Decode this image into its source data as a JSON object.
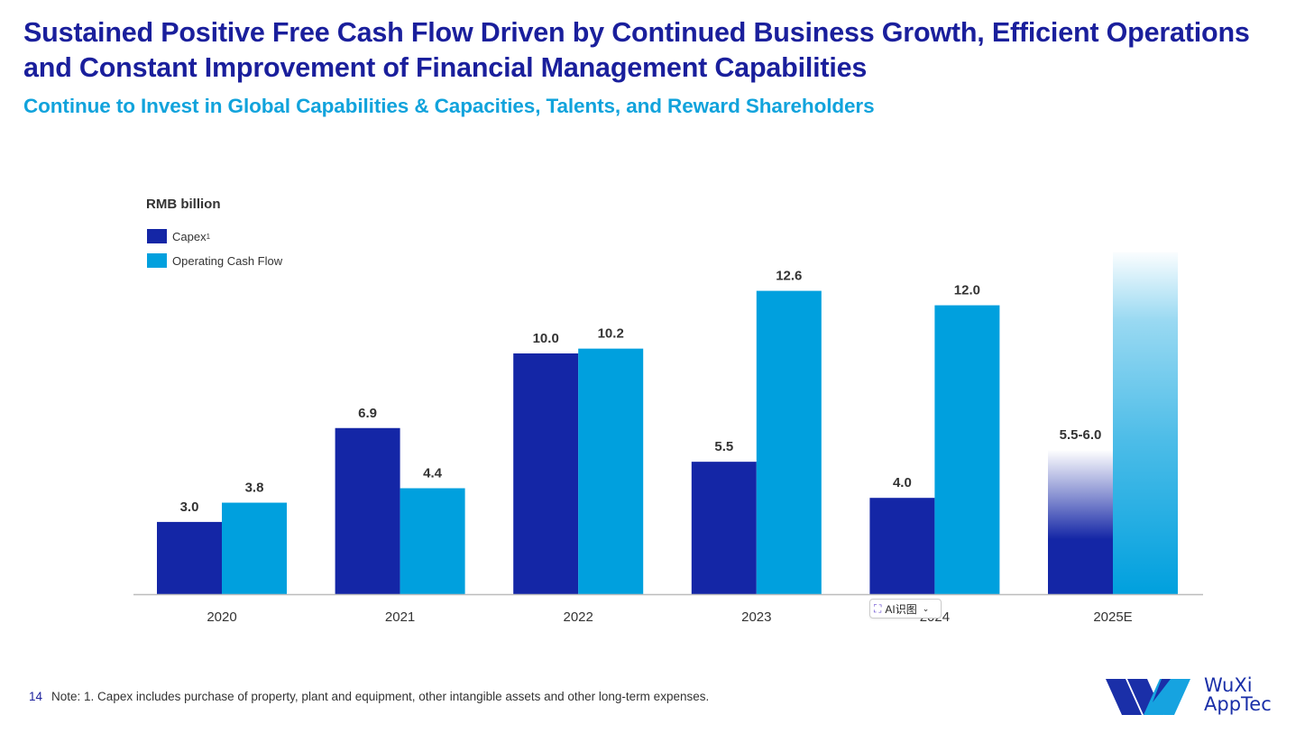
{
  "header": {
    "title": "Sustained Positive Free Cash Flow Driven by Continued Business Growth, Efficient Operations and Constant Improvement of Financial Management Capabilities",
    "subtitle": "Continue to Invest in Global Capabilities & Capacities, Talents, and Reward Shareholders"
  },
  "chart_data": {
    "type": "bar",
    "unit_label": "RMB billion",
    "categories": [
      "2020",
      "2021",
      "2022",
      "2023",
      "2024",
      "2025E"
    ],
    "series": [
      {
        "name": "Capex",
        "footnote_marker": "1",
        "color": "#1426a6",
        "values": [
          3.0,
          6.9,
          10.0,
          5.5,
          4.0,
          6.0
        ],
        "labels": [
          "3.0",
          "6.9",
          "10.0",
          "5.5",
          "4.0",
          "5.5-6.0"
        ],
        "faded": [
          false,
          false,
          false,
          false,
          false,
          true
        ]
      },
      {
        "name": "Operating Cash Flow",
        "color": "#00a0de",
        "values": [
          3.8,
          4.4,
          10.2,
          12.6,
          12.0,
          14.2
        ],
        "labels": [
          "3.8",
          "4.4",
          "10.2",
          "12.6",
          "12.0",
          ""
        ],
        "faded": [
          false,
          false,
          false,
          false,
          false,
          true
        ]
      }
    ],
    "ylim": [
      0,
      14.5
    ],
    "grid": false,
    "legend": "top-left"
  },
  "legend": {
    "capex": "Capex",
    "capex_sup": "1",
    "ocf": "Operating Cash Flow"
  },
  "footnote": {
    "page_number": "14",
    "text": "Note: 1. Capex includes purchase of property, plant and equipment, other intangible assets and other long-term expenses."
  },
  "overlay": {
    "ai_badge_label": "AI识图"
  },
  "logo": {
    "line1": "WuXi",
    "line2": "AppTec"
  }
}
